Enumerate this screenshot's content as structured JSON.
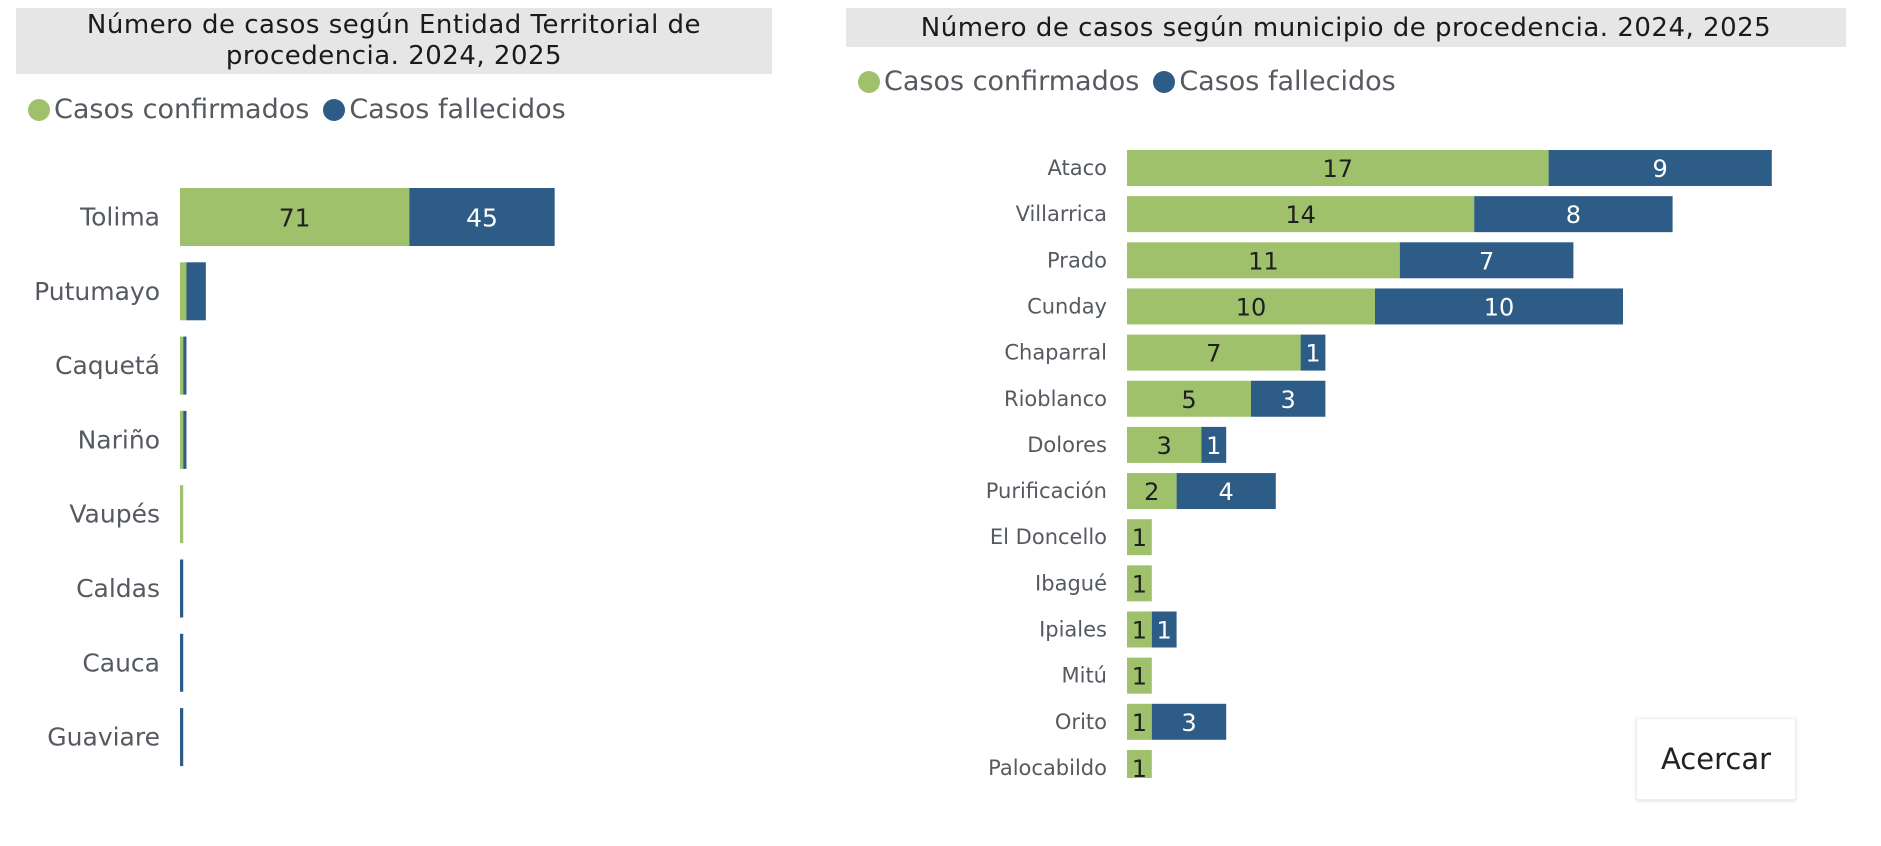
{
  "colors": {
    "confirmed": "#9fc16b",
    "deceased": "#2d5c86"
  },
  "chart_data": [
    {
      "type": "bar",
      "orientation": "horizontal",
      "stacked": true,
      "title_lines": [
        "Número de casos según Entidad Territorial de",
        "procedencia. 2024, 2025"
      ],
      "legend": [
        "Casos confirmados",
        "Casos fallecidos"
      ],
      "categories": [
        "Tolima",
        "Putumayo",
        "Caquetá",
        "Nariño",
        "Vaupés",
        "Caldas",
        "Cauca",
        "Guaviare"
      ],
      "series": [
        {
          "name": "Casos confirmados",
          "values": [
            71,
            2,
            1,
            1,
            1,
            0,
            0,
            0
          ]
        },
        {
          "name": "Casos fallecidos",
          "values": [
            45,
            6,
            1,
            1,
            0,
            1,
            1,
            1
          ]
        }
      ],
      "data_labels": [
        [
          "71",
          "45"
        ]
      ],
      "xlim": [
        0,
        116
      ]
    },
    {
      "type": "bar",
      "orientation": "horizontal",
      "stacked": true,
      "title": "Número de casos según municipio de procedencia. 2024, 2025",
      "legend": [
        "Casos confirmados",
        "Casos fallecidos"
      ],
      "categories": [
        "Ataco",
        "Villarrica",
        "Prado",
        "Cunday",
        "Chaparral",
        "Rioblanco",
        "Dolores",
        "Purificación",
        "El Doncello",
        "Ibagué",
        "Ipiales",
        "Mitú",
        "Orito",
        "Palocabildo"
      ],
      "series": [
        {
          "name": "Casos confirmados",
          "values": [
            17,
            14,
            11,
            10,
            7,
            5,
            3,
            2,
            1,
            1,
            1,
            1,
            1,
            1
          ]
        },
        {
          "name": "Casos fallecidos",
          "values": [
            9,
            8,
            7,
            10,
            1,
            3,
            1,
            4,
            0,
            0,
            1,
            0,
            3,
            0
          ]
        }
      ],
      "xlim": [
        0,
        26
      ]
    }
  ],
  "zoom_button": {
    "label": "Acercar"
  }
}
